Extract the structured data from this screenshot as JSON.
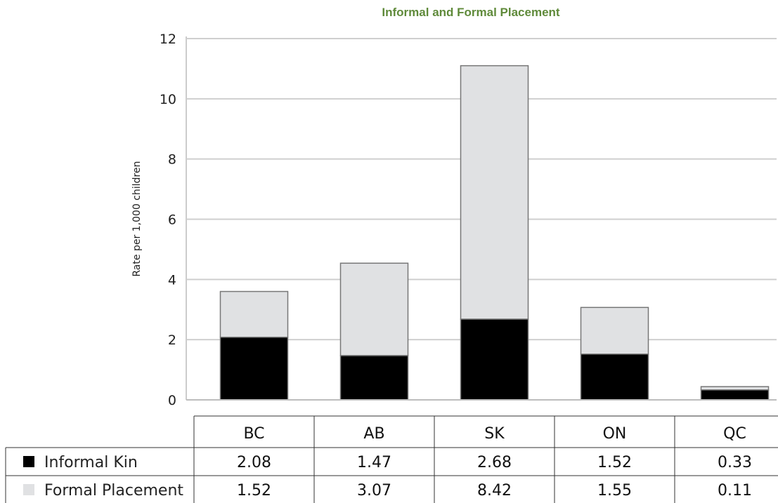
{
  "chart_data": {
    "type": "bar",
    "stacked": true,
    "title": "Informal and Formal Placement",
    "ylabel": "Rate per 1,000 children",
    "xlabel": "",
    "categories": [
      "BC",
      "AB",
      "SK",
      "ON",
      "QC"
    ],
    "series": [
      {
        "name": "Informal Kin",
        "values": [
          2.08,
          1.47,
          2.68,
          1.52,
          0.33
        ]
      },
      {
        "name": "Formal Placement",
        "values": [
          1.52,
          3.07,
          8.42,
          1.55,
          0.11
        ]
      }
    ],
    "ylim": [
      0,
      12
    ],
    "yticks": [
      0,
      2,
      4,
      6,
      8,
      10,
      12
    ],
    "grid": true,
    "legend": "data-table-below",
    "colors": {
      "title": "#5f8a3a",
      "bottom_segment": "#000000",
      "top_segment": "#e0e1e3",
      "bar_outline": "#777777",
      "grid": "#cfcfcf"
    }
  }
}
